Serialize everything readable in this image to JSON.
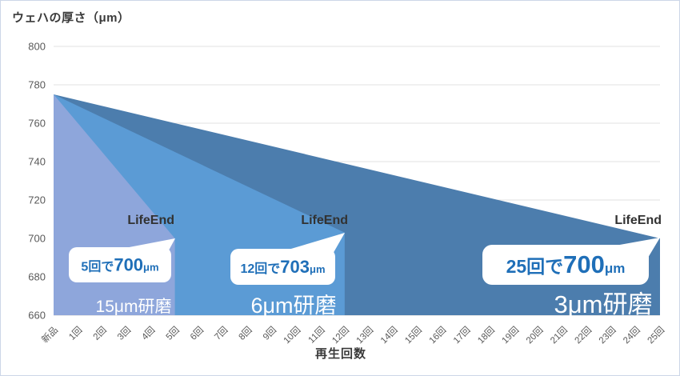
{
  "title": "ウェハの厚さ（μm）",
  "xlabel": "再生回数",
  "chart_data": {
    "type": "area",
    "title": "ウェハの厚さ（μm）",
    "xlabel": "再生回数",
    "x_categories": [
      "新品",
      "1回",
      "2回",
      "3回",
      "4回",
      "5回",
      "6回",
      "7回",
      "8回",
      "9回",
      "10回",
      "11回",
      "12回",
      "13回",
      "14回",
      "15回",
      "16回",
      "17回",
      "18回",
      "19回",
      "20回",
      "21回",
      "22回",
      "23回",
      "24回",
      "25回"
    ],
    "y_ticks": [
      800,
      780,
      760,
      740,
      720,
      700,
      680,
      660
    ],
    "ylim": [
      660,
      800
    ],
    "grid": true,
    "start_thickness": 775,
    "series": [
      {
        "name": "3μm研磨",
        "polish_per_cycle": 3,
        "end_cycle": 25,
        "end_thickness": 700,
        "color": "#4c7dad",
        "lifeend_label": "LifeEnd",
        "callout": {
          "prefix": "25回で",
          "value": "700",
          "unit": "μm"
        }
      },
      {
        "name": "6μm研磨",
        "polish_per_cycle": 6,
        "end_cycle": 12,
        "end_thickness": 703,
        "color": "#5b9bd5",
        "lifeend_label": "LifeEnd",
        "callout": {
          "prefix": "12回で",
          "value": "703",
          "unit": "μm"
        }
      },
      {
        "name": "15μm研磨",
        "polish_per_cycle": 15,
        "end_cycle": 5,
        "end_thickness": 700,
        "color": "#8ea6db",
        "lifeend_label": "LifeEnd",
        "callout": {
          "prefix": "5回で",
          "value": "700",
          "unit": "μm"
        }
      }
    ],
    "colors": {
      "callout_text": "#1f6fb8",
      "callout_box": "#ffffff",
      "series_label_text": "#ffffff",
      "lifeend_text": "#323232",
      "tick_text": "#595959",
      "gridline": "#e2e2e2",
      "baseline": "#d6d6d6"
    }
  }
}
